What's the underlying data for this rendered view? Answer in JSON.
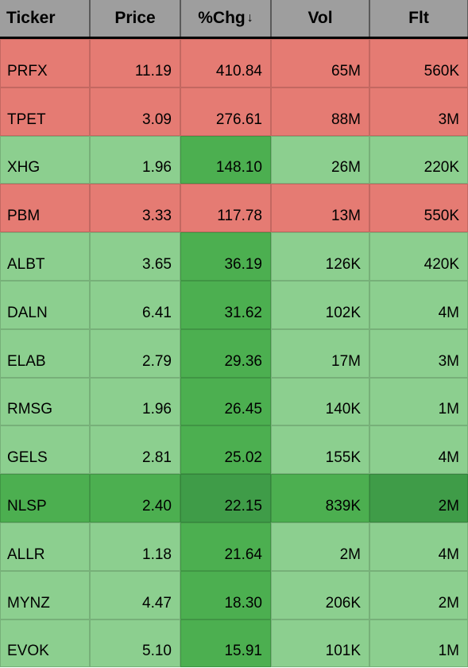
{
  "table": {
    "headers": {
      "ticker": "Ticker",
      "price": "Price",
      "chg": "%Chg",
      "vol": "Vol",
      "flt": "Flt"
    },
    "sort_indicator": "↓",
    "sorted_column": "chg",
    "colors": {
      "header_bg": "#9e9e9e",
      "header_border": "#5a5a5a",
      "header_bottom_border": "#000000",
      "red": "#e57b73",
      "light_green": "#8ccf8f",
      "dark_green": "#4caf50",
      "deeper_green": "#3f9c48",
      "cell_border": "rgba(0,0,0,0.15)",
      "text": "#000000"
    },
    "typography": {
      "header_fontsize": 21,
      "cell_fontsize": 19,
      "header_fontweight": 700
    },
    "column_widths": {
      "ticker": 113,
      "price": 114,
      "chg": 114,
      "vol": 124,
      "flt": 124
    },
    "rows": [
      {
        "ticker": "PRFX",
        "price": "11.19",
        "chg": "410.84",
        "vol": "65M",
        "flt": "560K",
        "bg": {
          "ticker": "#e57b73",
          "price": "#e57b73",
          "chg": "#e57b73",
          "vol": "#e57b73",
          "flt": "#e57b73"
        }
      },
      {
        "ticker": "TPET",
        "price": "3.09",
        "chg": "276.61",
        "vol": "88M",
        "flt": "3M",
        "bg": {
          "ticker": "#e57b73",
          "price": "#e57b73",
          "chg": "#e57b73",
          "vol": "#e57b73",
          "flt": "#e57b73"
        }
      },
      {
        "ticker": "XHG",
        "price": "1.96",
        "chg": "148.10",
        "vol": "26M",
        "flt": "220K",
        "bg": {
          "ticker": "#8ccf8f",
          "price": "#8ccf8f",
          "chg": "#4caf50",
          "vol": "#8ccf8f",
          "flt": "#8ccf8f"
        }
      },
      {
        "ticker": "PBM",
        "price": "3.33",
        "chg": "117.78",
        "vol": "13M",
        "flt": "550K",
        "bg": {
          "ticker": "#e57b73",
          "price": "#e57b73",
          "chg": "#e57b73",
          "vol": "#e57b73",
          "flt": "#e57b73"
        }
      },
      {
        "ticker": "ALBT",
        "price": "3.65",
        "chg": "36.19",
        "vol": "126K",
        "flt": "420K",
        "bg": {
          "ticker": "#8ccf8f",
          "price": "#8ccf8f",
          "chg": "#4caf50",
          "vol": "#8ccf8f",
          "flt": "#8ccf8f"
        }
      },
      {
        "ticker": "DALN",
        "price": "6.41",
        "chg": "31.62",
        "vol": "102K",
        "flt": "4M",
        "bg": {
          "ticker": "#8ccf8f",
          "price": "#8ccf8f",
          "chg": "#4caf50",
          "vol": "#8ccf8f",
          "flt": "#8ccf8f"
        }
      },
      {
        "ticker": "ELAB",
        "price": "2.79",
        "chg": "29.36",
        "vol": "17M",
        "flt": "3M",
        "bg": {
          "ticker": "#8ccf8f",
          "price": "#8ccf8f",
          "chg": "#4caf50",
          "vol": "#8ccf8f",
          "flt": "#8ccf8f"
        }
      },
      {
        "ticker": "RMSG",
        "price": "1.96",
        "chg": "26.45",
        "vol": "140K",
        "flt": "1M",
        "bg": {
          "ticker": "#8ccf8f",
          "price": "#8ccf8f",
          "chg": "#4caf50",
          "vol": "#8ccf8f",
          "flt": "#8ccf8f"
        }
      },
      {
        "ticker": "GELS",
        "price": "2.81",
        "chg": "25.02",
        "vol": "155K",
        "flt": "4M",
        "bg": {
          "ticker": "#8ccf8f",
          "price": "#8ccf8f",
          "chg": "#4caf50",
          "vol": "#8ccf8f",
          "flt": "#8ccf8f"
        }
      },
      {
        "ticker": "NLSP",
        "price": "2.40",
        "chg": "22.15",
        "vol": "839K",
        "flt": "2M",
        "bg": {
          "ticker": "#4caf50",
          "price": "#4caf50",
          "chg": "#3f9c48",
          "vol": "#4caf50",
          "flt": "#3f9c48"
        }
      },
      {
        "ticker": "ALLR",
        "price": "1.18",
        "chg": "21.64",
        "vol": "2M",
        "flt": "4M",
        "bg": {
          "ticker": "#8ccf8f",
          "price": "#8ccf8f",
          "chg": "#4caf50",
          "vol": "#8ccf8f",
          "flt": "#8ccf8f"
        }
      },
      {
        "ticker": "MYNZ",
        "price": "4.47",
        "chg": "18.30",
        "vol": "206K",
        "flt": "2M",
        "bg": {
          "ticker": "#8ccf8f",
          "price": "#8ccf8f",
          "chg": "#4caf50",
          "vol": "#8ccf8f",
          "flt": "#8ccf8f"
        }
      },
      {
        "ticker": "EVOK",
        "price": "5.10",
        "chg": "15.91",
        "vol": "101K",
        "flt": "1M",
        "bg": {
          "ticker": "#8ccf8f",
          "price": "#8ccf8f",
          "chg": "#4caf50",
          "vol": "#8ccf8f",
          "flt": "#8ccf8f"
        }
      }
    ]
  }
}
